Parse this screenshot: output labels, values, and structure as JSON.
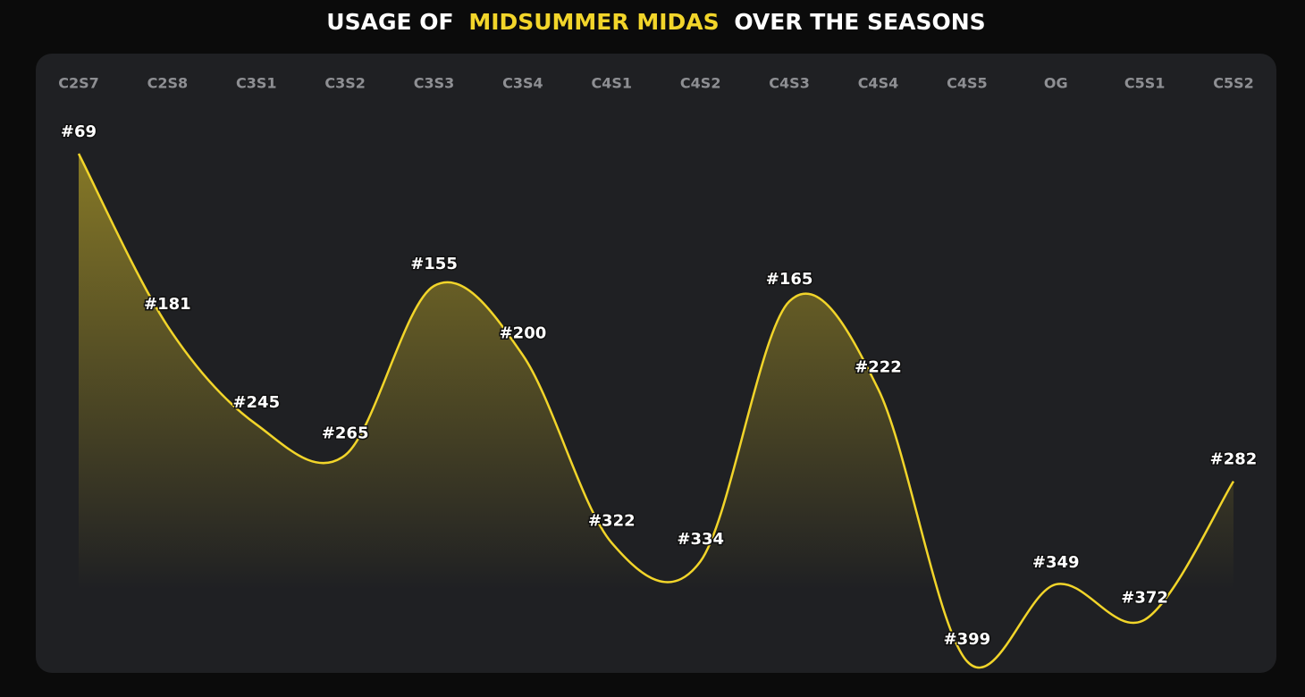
{
  "chart_data": {
    "type": "line",
    "title": [
      "USAGE OF",
      "MIDSUMMER MIDAS",
      "OVER THE SEASONS"
    ],
    "categories": [
      "C2S7",
      "C2S8",
      "C3S1",
      "C3S2",
      "C3S3",
      "C3S4",
      "C4S1",
      "C4S2",
      "C4S3",
      "C4S4",
      "C4S5",
      "OG",
      "C5S1",
      "C5S2"
    ],
    "values": [
      69,
      181,
      245,
      265,
      155,
      200,
      322,
      334,
      165,
      222,
      399,
      349,
      372,
      282
    ],
    "value_labels": [
      "#69",
      "#181",
      "#245",
      "#265",
      "#155",
      "#200",
      "#322",
      "#334",
      "#165",
      "#222",
      "#399",
      "#349",
      "#372",
      "#282"
    ],
    "color": "#f2d52a",
    "y_inverted": true
  }
}
